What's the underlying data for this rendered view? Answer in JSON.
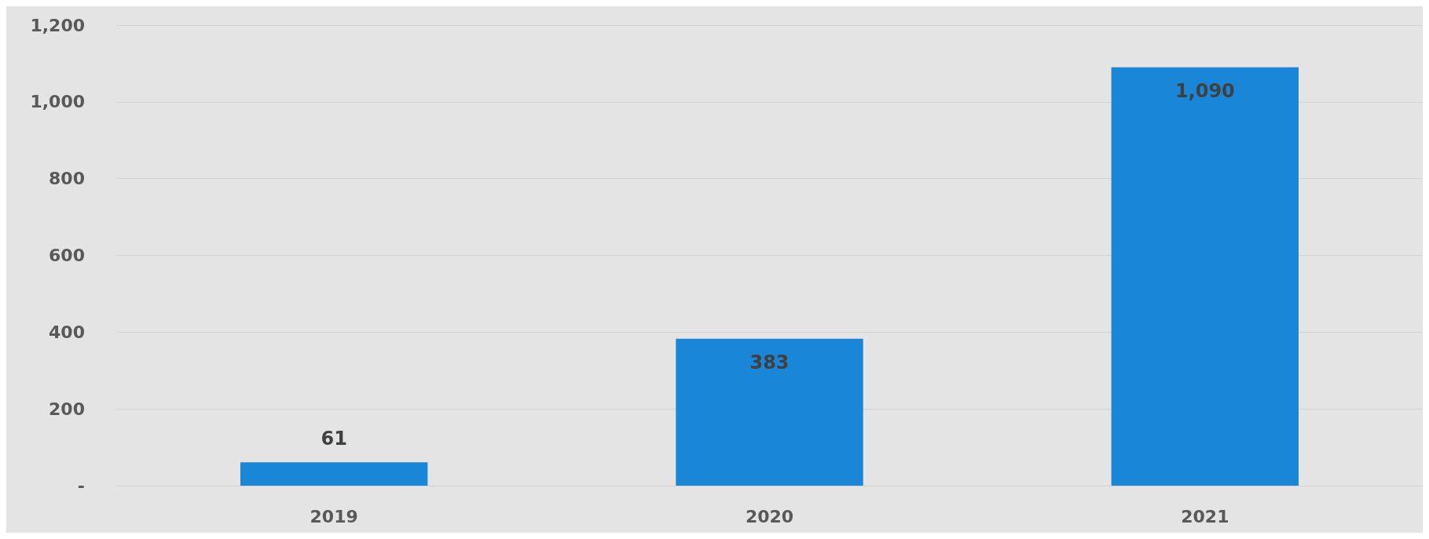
{
  "chart_data": {
    "type": "bar",
    "categories": [
      "2019",
      "2020",
      "2021"
    ],
    "values": [
      61,
      383,
      1090
    ],
    "value_labels": [
      "61",
      "383",
      "1,090"
    ],
    "color": "#1a86d8",
    "ylim": [
      0,
      1200
    ],
    "yticks": [
      {
        "value": 0,
        "label": "-"
      },
      200,
      400,
      600,
      800,
      {
        "value": 1000,
        "label": "1,000"
      },
      {
        "value": 1200,
        "label": "1,200"
      }
    ],
    "grid": "y"
  }
}
